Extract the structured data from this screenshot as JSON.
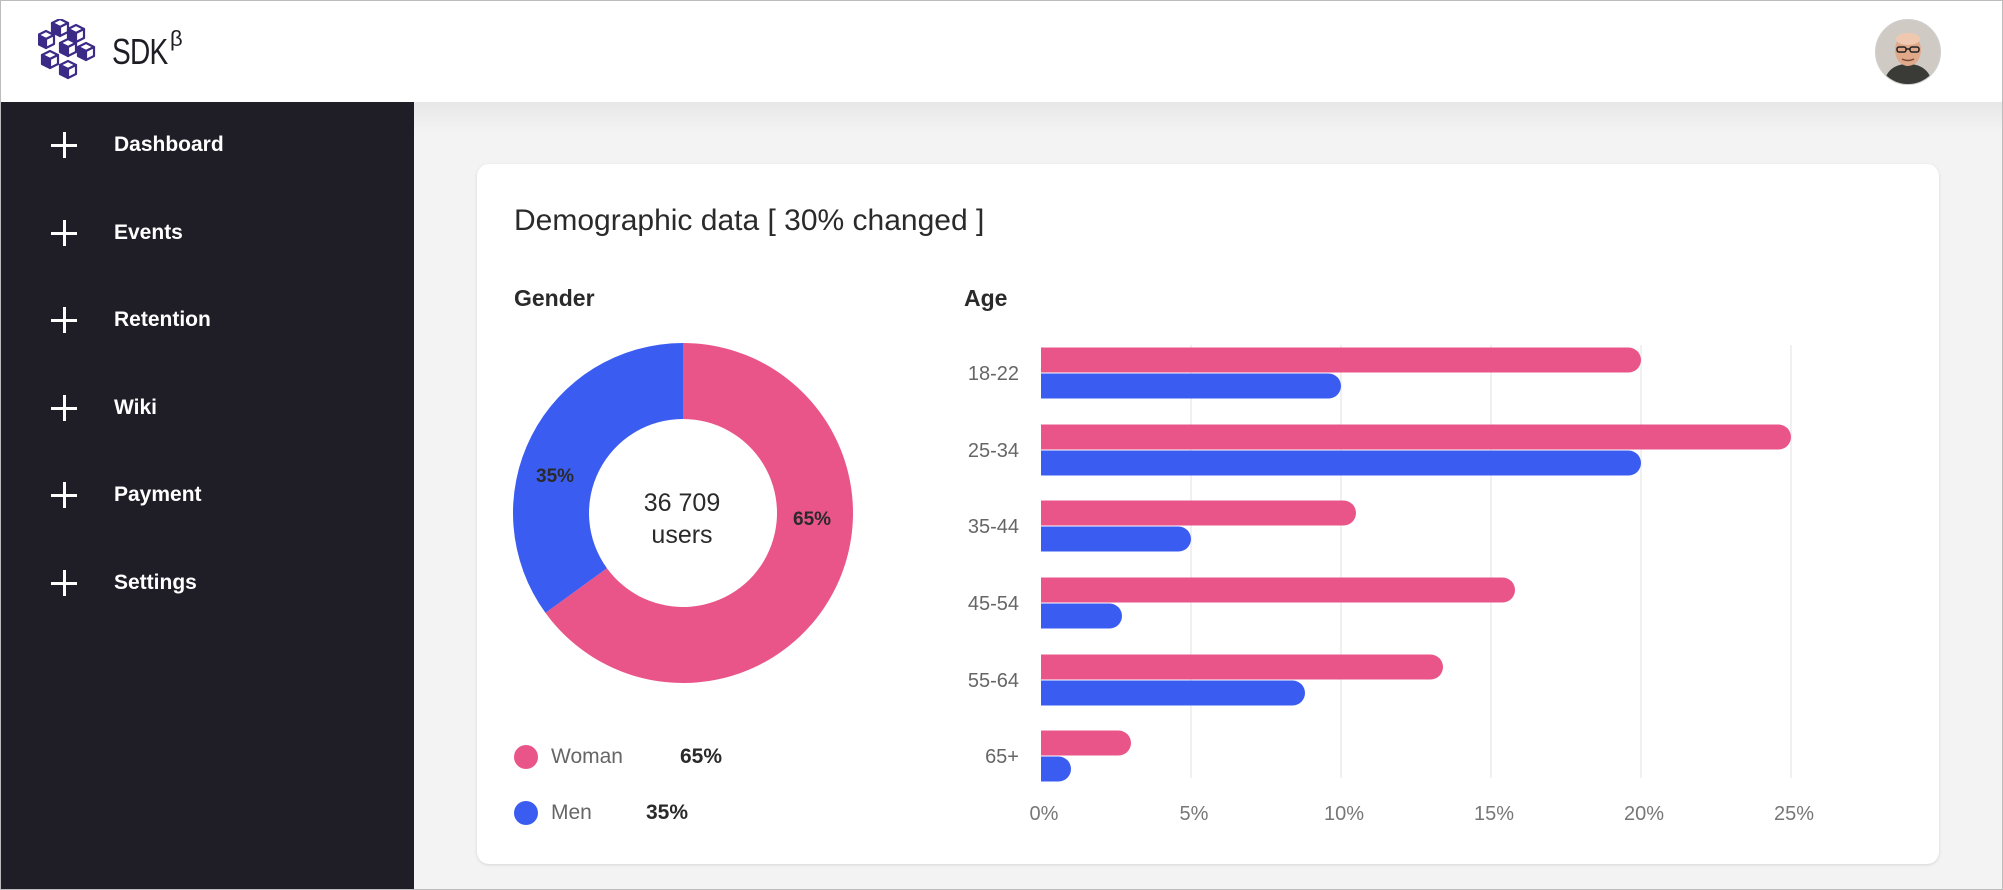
{
  "app": {
    "brand": "SDK",
    "beta": "β"
  },
  "sidebar": {
    "items": [
      {
        "label": "Dashboard",
        "icon": "plus-icon"
      },
      {
        "label": "Events",
        "icon": "plus-icon"
      },
      {
        "label": "Retention",
        "icon": "plus-icon"
      },
      {
        "label": "Wiki",
        "icon": "plus-icon"
      },
      {
        "label": "Payment",
        "icon": "plus-icon"
      },
      {
        "label": "Settings",
        "icon": "plus-icon"
      }
    ]
  },
  "card": {
    "title": "Demographic data [ 30% changed ]"
  },
  "colors": {
    "woman": "#ea5589",
    "men": "#3b5cf0",
    "sidebar": "#1f1e26"
  },
  "gender": {
    "title": "Gender",
    "center_line1": "36 709",
    "center_line2": "users",
    "legend": [
      {
        "name": "Woman",
        "value": "65%"
      },
      {
        "name": "Men",
        "value": "35%"
      }
    ]
  },
  "age": {
    "title": "Age"
  },
  "chart_data": [
    {
      "type": "pie",
      "title": "Gender",
      "labels": [
        "Woman",
        "Men"
      ],
      "values": [
        65,
        35
      ],
      "slice_labels": [
        "65%",
        "35%"
      ],
      "donut": true
    },
    {
      "type": "bar",
      "orientation": "horizontal",
      "title": "Age",
      "categories": [
        "18-22",
        "25-34",
        "35-44",
        "45-54",
        "55-64",
        "65+"
      ],
      "series": [
        {
          "name": "Woman",
          "values": [
            20,
            25,
            10.5,
            15.8,
            13.4,
            3
          ]
        },
        {
          "name": "Men",
          "values": [
            10,
            20,
            5,
            2.7,
            8.8,
            1
          ]
        }
      ],
      "xticks": [
        "0%",
        "5%",
        "10%",
        "15%",
        "20%",
        "25%"
      ],
      "xlim": [
        0,
        25
      ],
      "grid": true
    }
  ]
}
